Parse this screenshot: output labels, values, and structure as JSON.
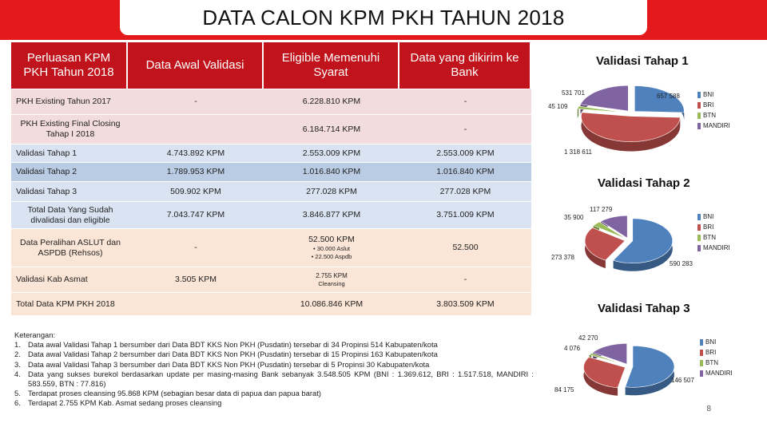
{
  "title": "DATA CALON KPM PKH TAHUN 2018",
  "table": {
    "headers": [
      "Perluasan KPM PKH Tahun 2018",
      "Data Awal Validasi",
      "Eligible Memenuhi Syarat",
      "Data yang dikirim ke Bank"
    ],
    "rows": [
      {
        "label": "PKH Existing Tahun 2017",
        "awal": "-",
        "eligible": "6.228.810 KPM",
        "bank": "-"
      },
      {
        "label": "PKH Existing Final Closing Tahap I 2018",
        "awal": "",
        "eligible": "6.184.714 KPM",
        "bank": "-"
      },
      {
        "label": "Validasi  Tahap 1",
        "awal": "4.743.892 KPM",
        "eligible": "2.553.009 KPM",
        "bank": "2.553.009 KPM"
      },
      {
        "label": "Validasi Tahap 2",
        "awal": "1.789.953 KPM",
        "eligible": "1.016.840 KPM",
        "bank": "1.016.840 KPM"
      },
      {
        "label": "Validasi Tahap 3",
        "awal": "509.902 KPM",
        "eligible": "277.028 KPM",
        "bank": "277.028 KPM"
      },
      {
        "label": "Total Data Yang Sudah divalidasi dan eligible",
        "awal": "7.043.747 KPM",
        "eligible": "3.846.877 KPM",
        "bank": "3.751.009 KPM"
      },
      {
        "label": "Data Peralihan ASLUT dan ASPDB (Rehsos)",
        "awal": "-",
        "eligible": "52.500 KPM",
        "eligible_sub1": "• 30.000 Aslut",
        "eligible_sub2": "• 22.500 Aspdb",
        "bank": "52.500"
      },
      {
        "label": "Validasi Kab Asmat",
        "awal": "3.505 KPM",
        "eligible": "2.755 KPM",
        "eligible_sub1": "Cleansing",
        "bank": "-"
      },
      {
        "label": "Total Data KPM PKH 2018",
        "awal": "",
        "eligible": "10.086.846 KPM",
        "bank": "3.803.509 KPM"
      }
    ]
  },
  "notes": {
    "heading": "Keterangan:",
    "items": [
      {
        "num": "1.",
        "text": "Data awal Validasi Tahap 1 bersumber dari Data BDT KKS Non PKH (Pusdatin) tersebar di 34 Propinsi 514 Kabupaten/kota"
      },
      {
        "num": "2.",
        "text": "Data awal Validasi Tahap 2 bersumber dari Data BDT KKS Non PKH (Pusdatin) tersebar di 15 Propinsi 163 Kabupaten/kota"
      },
      {
        "num": "3.",
        "text": "Data awal Validasi Tahap 3 bersumber dari Data BDT KKS Non PKH (Pusdatin) tersebar di 5 Propinsi 30 Kabupaten/kota"
      },
      {
        "num": "4.",
        "text": "Data yang sukses burekol berdasarkan update per masing-masing Bank  sebanyak 3.548.505  KPM  (BNI  : 1.369.612, BRI  : 1.517.518, MANDIRI : 583.559, BTN : 77.816)"
      },
      {
        "num": "5.",
        "text": "Terdapat proses cleansing 95.868 KPM (sebagian besar data di papua dan papua barat)"
      },
      {
        "num": "6.",
        "text": "Terdapat 2.755 KPM Kab. Asmat sedang proses cleansing"
      }
    ]
  },
  "chart_data": [
    {
      "type": "pie",
      "title": "Validasi Tahap 1",
      "categories": [
        "BNI",
        "BRI",
        "BTN",
        "MANDIRI"
      ],
      "values": [
        657588,
        1318611,
        45109,
        531701
      ],
      "value_labels": [
        "657 588",
        "1 318 611",
        "45 109",
        "531 701"
      ],
      "colors": [
        "#4f81bd",
        "#c0504d",
        "#9bbb59",
        "#8064a2"
      ],
      "legend": "right"
    },
    {
      "type": "pie",
      "title": "Validasi Tahap 2",
      "categories": [
        "BNI",
        "BRI",
        "BTN",
        "MANDIRI"
      ],
      "values": [
        590283,
        273378,
        35900,
        117279
      ],
      "value_labels": [
        "590 283",
        "273 378",
        "35 900",
        "117 279"
      ],
      "colors": [
        "#4f81bd",
        "#c0504d",
        "#9bbb59",
        "#8064a2"
      ],
      "legend": "right"
    },
    {
      "type": "pie",
      "title": "Validasi Tahap 3",
      "categories": [
        "BNI",
        "BRI",
        "BTN",
        "MANDIRI"
      ],
      "values": [
        146507,
        84175,
        4076,
        42270
      ],
      "value_labels": [
        "146 507",
        "84 175",
        "4 076",
        "42 270"
      ],
      "colors": [
        "#4f81bd",
        "#c0504d",
        "#9bbb59",
        "#8064a2"
      ],
      "legend": "right"
    }
  ],
  "page_number": "8"
}
